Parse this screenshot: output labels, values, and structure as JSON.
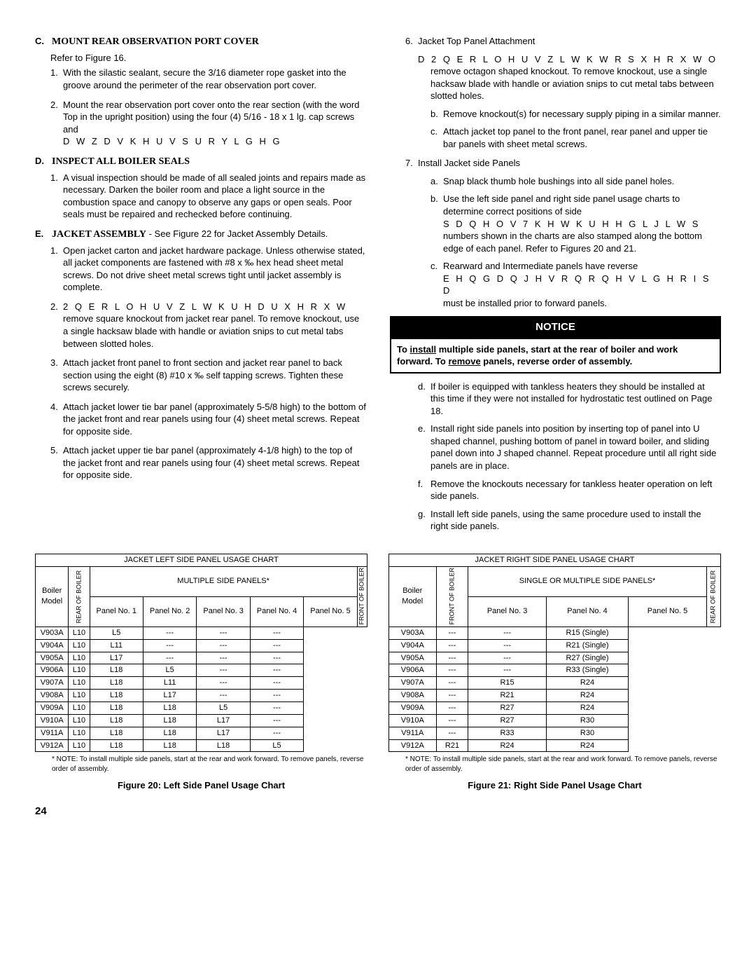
{
  "left": {
    "C": {
      "letter": "C.",
      "title": "MOUNT REAR OBSERVATION PORT COVER",
      "sub": "Refer to Figure 16.",
      "items": [
        "With the silastic sealant, secure the 3/16  diameter rope gasket into the groove around the perimeter of the rear observation port cover.",
        "Mount the rear observation port cover onto the rear section (with the word  Top  in the upright position) using the four (4) 5/16  - 18 x 1  lg. cap screws and"
      ],
      "tail": "D W   Z D V K H U V   S U R Y L G H G"
    },
    "D": {
      "letter": "D.",
      "title": "INSPECT ALL BOILER SEALS",
      "items": [
        "A visual inspection should be made of all sealed joints and repairs made as necessary.  Darken the boiler room and place a light source in the combustion space and canopy to observe any gaps or open seals.  Poor seals must be repaired and rechecked before continuing."
      ]
    },
    "E": {
      "letter": "E.",
      "title": "JACKET ASSEMBLY",
      "rest": " - See Figure 22 for Jacket Assembly Details.",
      "items": [
        "Open jacket carton and jacket hardware package.  Unless otherwise stated, all jacket components are fastened with #8 x ‰  hex head sheet metal screws. Do not drive sheet metal screws tight until jacket assembly is complete.",
        "remove square knockout from jacket rear panel.  To remove knockout, use a single hacksaw blade with handle or aviation snips to cut metal tabs between slotted holes.",
        "Attach jacket front panel to front section and jacket rear panel to back section using the eight (8) #10 x ‰  self tapping screws.  Tighten these screws securely.",
        "Attach jacket lower tie bar panel (approximately 5-5/8  high) to the bottom of the jacket front and rear panels using four (4) sheet metal screws. Repeat for opposite side.",
        "Attach jacket upper tie bar panel (approximately 4-1/8  high) to the top of the jacket front and rear panels using four (4) sheet metal screws.  Repeat for opposite side."
      ],
      "item2pre": "2 Q   E R L O H U V   Z L W K   U H D U     X H   R X W"
    }
  },
  "right": {
    "six": {
      "num": "6.",
      "lead": "Jacket Top Panel Attachment",
      "pre": "D  2 Q   E R L O H U V   Z L W K   W R S     X H   R X W O",
      "a_rest": "remove octagon shaped knockout.  To remove knockout, use a single hacksaw blade with handle or aviation snips to cut metal tabs between slotted holes.",
      "b": "Remove knockout(s) for necessary supply piping in a similar manner.",
      "c": "Attach jacket top panel to the front panel, rear panel and upper tie bar panels with sheet metal screws."
    },
    "seven": {
      "num": "7.",
      "lead": "Install Jacket side Panels",
      "a": "Snap black thumb hole bushings into all side panel holes.",
      "b": "Use the left side panel and right side panel usage charts to determine correct positions of side",
      "b_mid": "S D Q H O V       7 K H   W K U H H         G L J L W   S",
      "b_rest": "numbers shown in the charts are also stamped along the bottom edge of each panel.  Refer to Figures 20 and 21.",
      "c": "Rearward and Intermediate panels have reverse",
      "c_mid": "E H Q G     D Q J H V   R Q   R Q H   V L G H   R I   S D",
      "c_rest": "must be installed prior to forward panels."
    },
    "notice": "NOTICE",
    "notice_text_pre": "To ",
    "notice_install": "install",
    "notice_mid": " multiple side panels, start at the rear of boiler and work forward.  To ",
    "notice_remove": "remove",
    "notice_end": " panels, reverse order of assembly.",
    "d": "If boiler is equipped with tankless heaters they should be installed at this time if they were not installed for hydrostatic test outlined on Page 18.",
    "e": "Install right side panels into position by inserting top of panel into  U  shaped channel, pushing bottom of panel in toward boiler, and sliding panel down into  J  shaped channel.  Repeat procedure until all right side panels are in place.",
    "f": "Remove the knockouts necessary for tankless heater operation on left side panels.",
    "g": "Install left side panels, using the same procedure used to install the right side panels."
  },
  "leftTable": {
    "title": "JACKET LEFT SIDE PANEL USAGE CHART",
    "h1a": "Boiler",
    "h1b": "Model",
    "h2": "MULTIPLE SIDE PANELS*",
    "cols": [
      "Panel No. 1",
      "Panel No. 2",
      "Panel No. 3",
      "Panel No. 4",
      "Panel No. 5"
    ],
    "sideL": "REAR OF BOILER",
    "sideR": "FRONT OF BOILER",
    "rows": [
      [
        "V903A",
        "L10",
        "L5",
        "---",
        "---",
        "---"
      ],
      [
        "V904A",
        "L10",
        "L11",
        "---",
        "---",
        "---"
      ],
      [
        "V905A",
        "L10",
        "L17",
        "---",
        "---",
        "---"
      ],
      [
        "V906A",
        "L10",
        "L18",
        "L5",
        "---",
        "---"
      ],
      [
        "V907A",
        "L10",
        "L18",
        "L11",
        "---",
        "---"
      ],
      [
        "V908A",
        "L10",
        "L18",
        "L17",
        "---",
        "---"
      ],
      [
        "V909A",
        "L10",
        "L18",
        "L18",
        "L5",
        "---"
      ],
      [
        "V910A",
        "L10",
        "L18",
        "L18",
        "L17",
        "---"
      ],
      [
        "V911A",
        "L10",
        "L18",
        "L18",
        "L17",
        "---"
      ],
      [
        "V912A",
        "L10",
        "L18",
        "L18",
        "L18",
        "L5"
      ]
    ],
    "note": "* NOTE:  To install multiple side panels, start at the rear and work forward. To remove panels, reverse order of assembly.",
    "cap": "Figure 20:  Left Side Panel Usage Chart"
  },
  "rightTable": {
    "title": "JACKET RIGHT SIDE PANEL USAGE CHART",
    "h1a": "Boiler",
    "h1b": "Model",
    "h2": "SINGLE OR MULTIPLE SIDE PANELS*",
    "cols": [
      "Panel No. 3",
      "Panel No. 4",
      "Panel No. 5"
    ],
    "sideL": "FRONT OF BOILER",
    "sideR": "REAR OF BOILER",
    "rows": [
      [
        "V903A",
        "---",
        "---",
        "R15 (Single)"
      ],
      [
        "V904A",
        "---",
        "---",
        "R21 (Single)"
      ],
      [
        "V905A",
        "---",
        "---",
        "R27 (Single)"
      ],
      [
        "V906A",
        "---",
        "---",
        "R33 (Single)"
      ],
      [
        "V907A",
        "---",
        "R15",
        "R24"
      ],
      [
        "V908A",
        "---",
        "R21",
        "R24"
      ],
      [
        "V909A",
        "---",
        "R27",
        "R24"
      ],
      [
        "V910A",
        "---",
        "R27",
        "R30"
      ],
      [
        "V911A",
        "---",
        "R33",
        "R30"
      ],
      [
        "V912A",
        "R21",
        "R24",
        "R24"
      ]
    ],
    "note": "* NOTE:  To install multiple side panels, start at the rear and work forward.  To remove panels, reverse order of assembly.",
    "cap": "Figure 21:  Right Side Panel Usage Chart"
  },
  "page": "24"
}
